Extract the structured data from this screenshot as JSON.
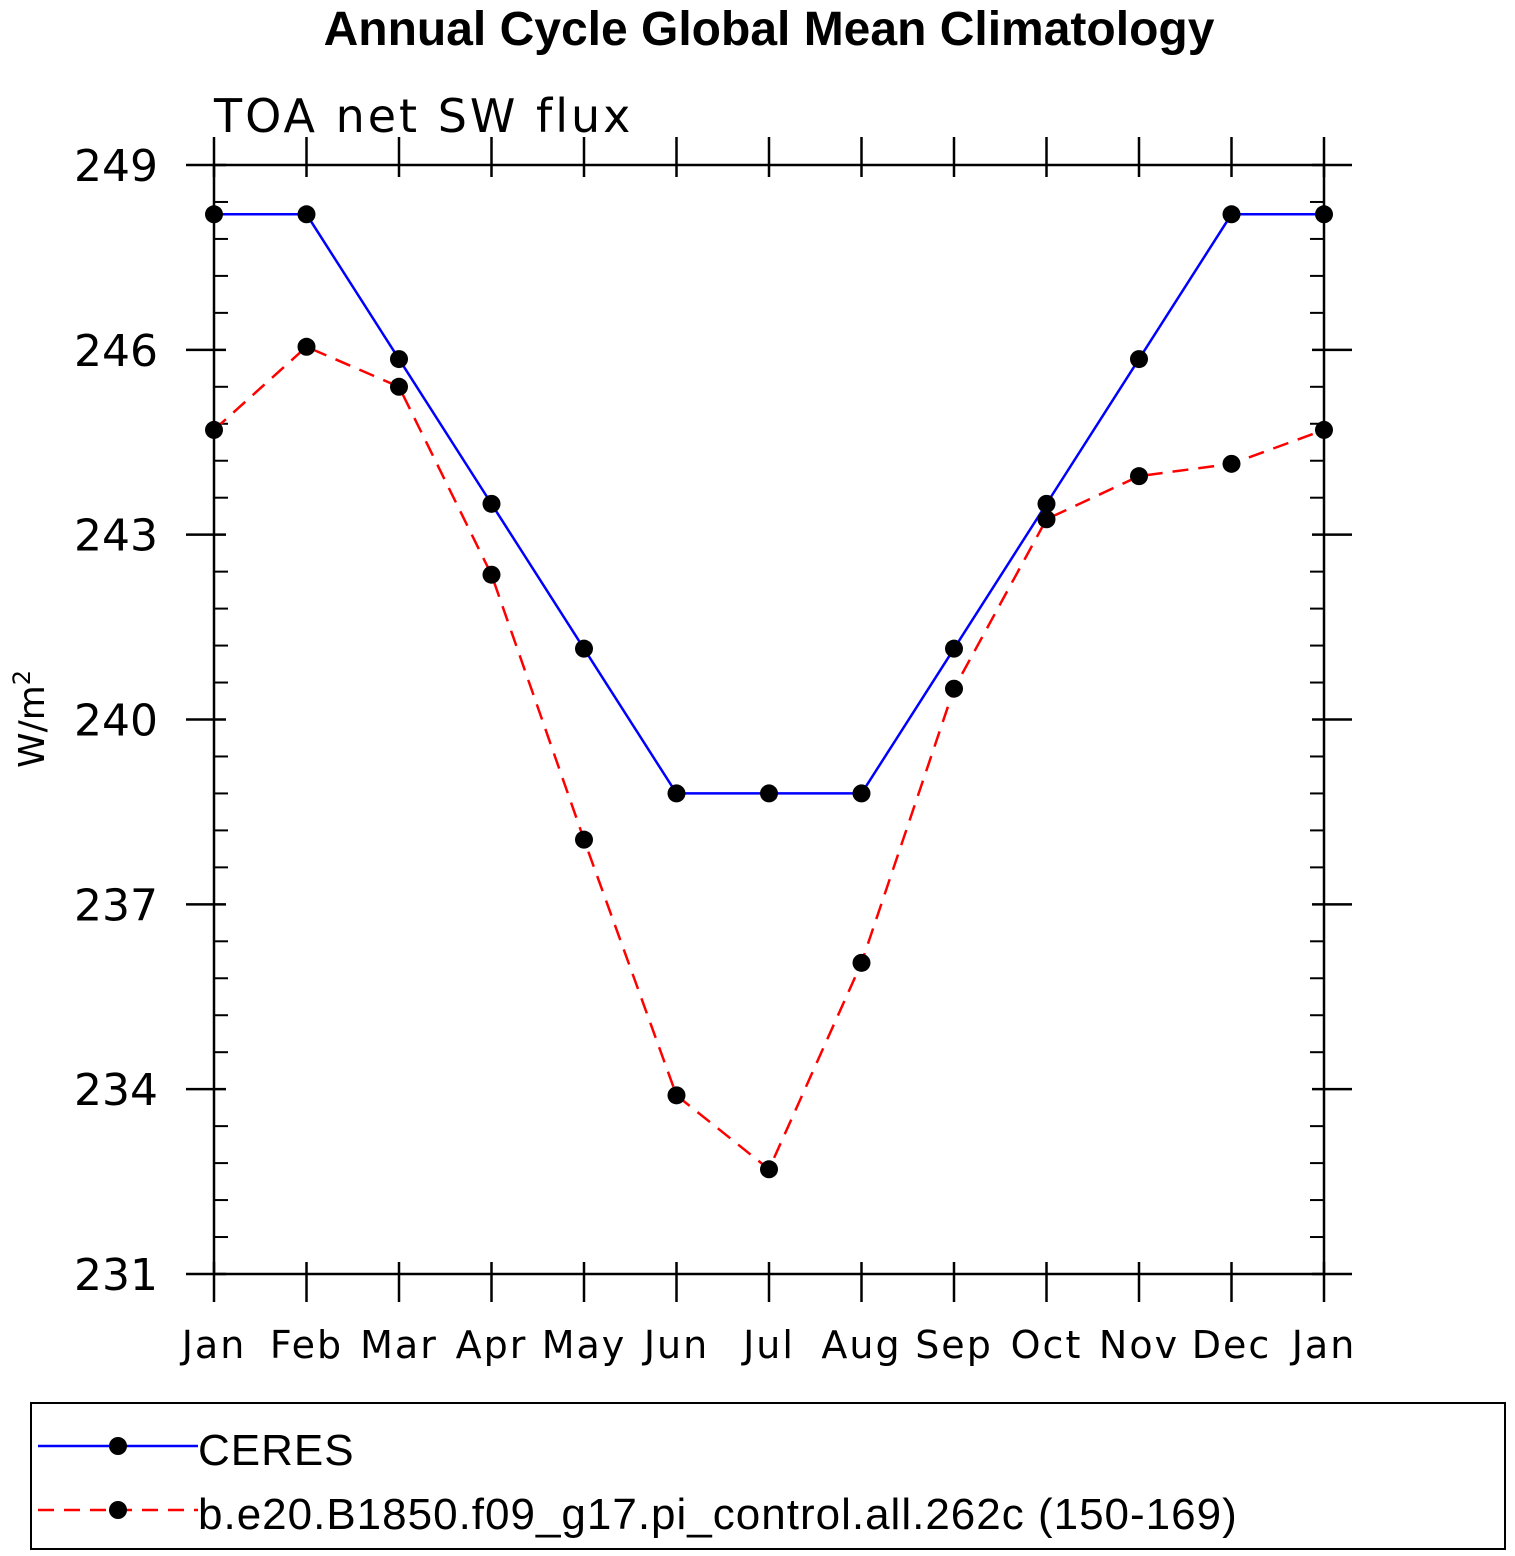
{
  "chart_data": {
    "type": "line",
    "title": "Annual Cycle Global Mean Climatology",
    "subtitle": "TOA net SW flux",
    "xlabel": "",
    "ylabel": "W/m²",
    "categories": [
      "Jan",
      "Feb",
      "Mar",
      "Apr",
      "May",
      "Jun",
      "Jul",
      "Aug",
      "Sep",
      "Oct",
      "Nov",
      "Dec",
      "Jan"
    ],
    "ylim": [
      231,
      249
    ],
    "yticks": [
      231,
      234,
      237,
      240,
      243,
      246,
      249
    ],
    "grid": false,
    "legend_position": "bottom",
    "series": [
      {
        "name": "CERES",
        "color": "#0000ff",
        "line_style": "solid",
        "marker": "filled-circle",
        "values": [
          248.2,
          248.2,
          245.85,
          243.5,
          241.15,
          238.8,
          238.8,
          238.8,
          241.15,
          243.5,
          245.85,
          248.2,
          248.2
        ]
      },
      {
        "name": "b.e20.B1850.f09_g17.pi_control.all.262c (150-169)",
        "color": "#ff0000",
        "line_style": "dashed",
        "marker": "filled-circle",
        "values": [
          244.7,
          246.05,
          245.4,
          242.35,
          238.05,
          233.9,
          232.7,
          236.05,
          240.5,
          243.25,
          243.95,
          244.15,
          244.7
        ]
      }
    ]
  }
}
